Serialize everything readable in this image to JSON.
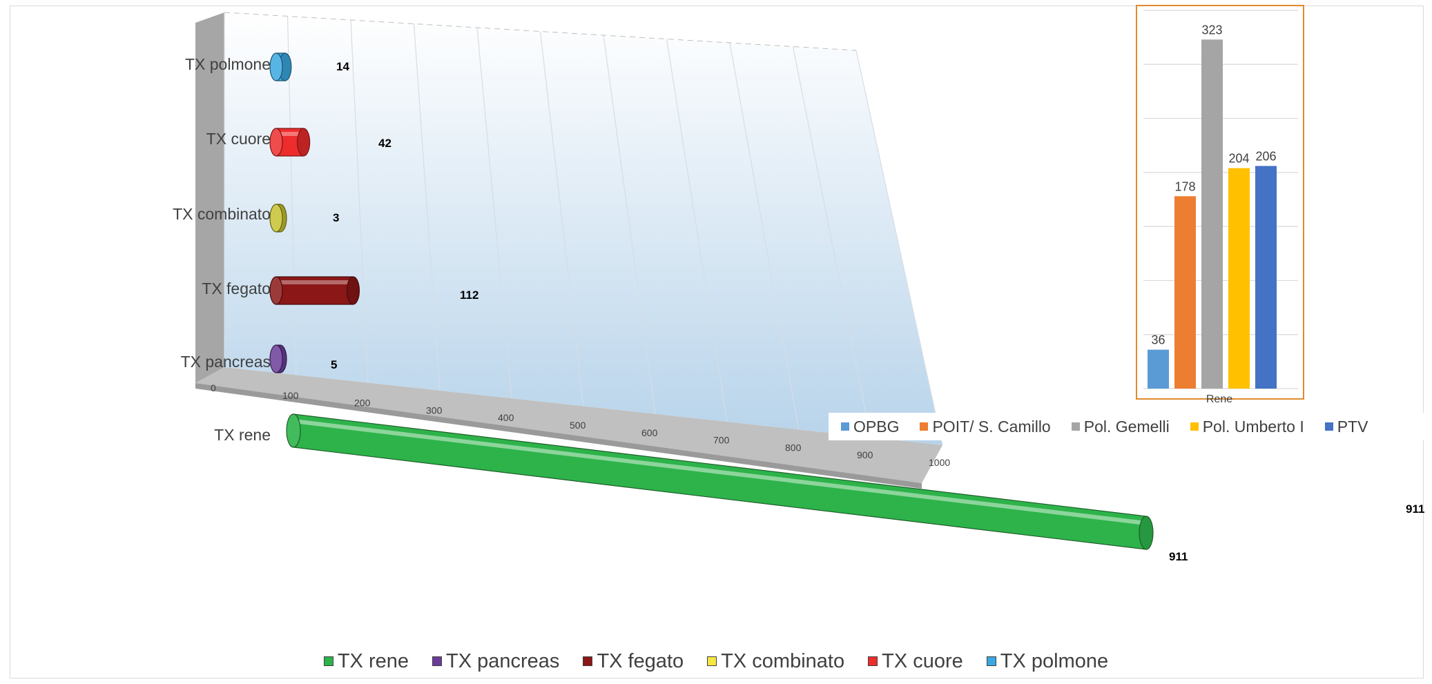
{
  "chart_data": [
    {
      "type": "bar",
      "orientation": "horizontal",
      "style": "3d-cylinder",
      "categories": [
        "TX polmone",
        "TX cuore",
        "TX combinato",
        "TX fegato",
        "TX pancreas",
        "TX rene"
      ],
      "values": [
        14,
        42,
        3,
        112,
        5,
        911
      ],
      "colors": [
        "#39a8e0",
        "#ee2c2c",
        "#c5c230",
        "#8b1717",
        "#6a3d9a",
        "#2db34a"
      ],
      "xlim": [
        0,
        1000
      ],
      "xticks": [
        0,
        100,
        200,
        300,
        400,
        500,
        600,
        700,
        800,
        900,
        1000
      ],
      "legend": [
        {
          "label": "TX rene",
          "color": "#2db34a"
        },
        {
          "label": "TX pancreas",
          "color": "#6a3d9a"
        },
        {
          "label": "TX fegato",
          "color": "#8b1717"
        },
        {
          "label": "TX combinato",
          "color": "#f5e642"
        },
        {
          "label": "TX cuore",
          "color": "#ee2c2c"
        },
        {
          "label": "TX polmone",
          "color": "#39a8e0"
        }
      ],
      "legend_position": "bottom",
      "grid": true
    },
    {
      "type": "bar",
      "categories": [
        "Rene"
      ],
      "series": [
        {
          "name": "OPBG",
          "values": [
            36
          ],
          "color": "#5b9bd5"
        },
        {
          "name": "POIT/ S. Camillo",
          "values": [
            178
          ],
          "color": "#ed7d31"
        },
        {
          "name": "Pol. Gemelli",
          "values": [
            323
          ],
          "color": "#a5a5a5"
        },
        {
          "name": "Pol. Umberto I",
          "values": [
            204
          ],
          "color": "#ffc000"
        },
        {
          "name": "PTV",
          "values": [
            206
          ],
          "color": "#4472c4"
        }
      ],
      "ylim": [
        0,
        350
      ],
      "legend_position": "bottom",
      "grid": true
    }
  ],
  "extra_label": "911"
}
